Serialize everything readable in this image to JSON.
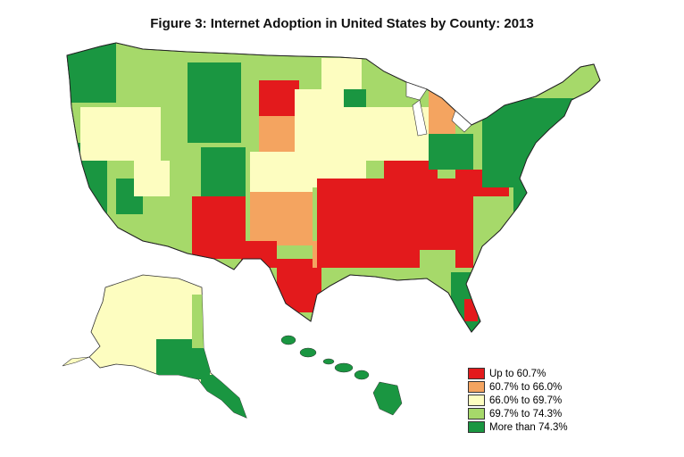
{
  "title": "Figure 3: Internet Adoption in United States by County: 2013",
  "legend": {
    "items": [
      {
        "label": "Up to 60.7%",
        "color": "#e31a1c"
      },
      {
        "label": "60.7% to 66.0%",
        "color": "#f4a460"
      },
      {
        "label": "66.0% to 69.7%",
        "color": "#fdfdc0"
      },
      {
        "label": "69.7% to 74.3%",
        "color": "#a6d96a"
      },
      {
        "label": "More than 74.3%",
        "color": "#1a9641"
      }
    ]
  }
}
